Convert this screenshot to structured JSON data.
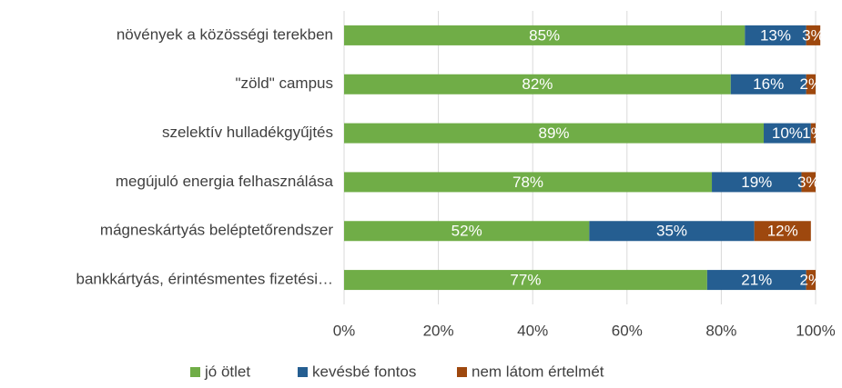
{
  "chart_data": {
    "type": "stacked_barh",
    "categories": [
      "növények a közösségi terekben",
      "\"zöld\" campus",
      "szelektív hulladékgyűjtés",
      "megújuló energia felhasználása",
      "mágneskártyás beléptetőrendszer",
      "bankkártyás, érintésmentes fizetési…"
    ],
    "series": [
      {
        "name": "jó ötlet",
        "color": "#70ad47",
        "values": [
          85,
          82,
          89,
          78,
          52,
          77
        ],
        "value_labels": [
          "85%",
          "82%",
          "89%",
          "78%",
          "52%",
          "77%"
        ]
      },
      {
        "name": "kevésbé fontos",
        "color": "#255e91",
        "values": [
          13,
          16,
          10,
          19,
          35,
          21
        ],
        "value_labels": [
          "13%",
          "16%",
          "10%",
          "19%",
          "35%",
          "21%"
        ]
      },
      {
        "name": "nem látom értelmét",
        "color": "#9e480e",
        "values": [
          3,
          2,
          1,
          3,
          12,
          2
        ],
        "value_labels": [
          "3%",
          "2%",
          "1%",
          "3%",
          "12%",
          "2%"
        ]
      }
    ],
    "xlim": [
      0,
      100
    ],
    "xticks": [
      {
        "value": 0,
        "label": "0%"
      },
      {
        "value": 20,
        "label": "20%"
      },
      {
        "value": 40,
        "label": "40%"
      },
      {
        "value": 60,
        "label": "60%"
      },
      {
        "value": 80,
        "label": "80%"
      },
      {
        "value": 100,
        "label": "100%"
      }
    ],
    "grid": true,
    "legend": "bottom"
  }
}
